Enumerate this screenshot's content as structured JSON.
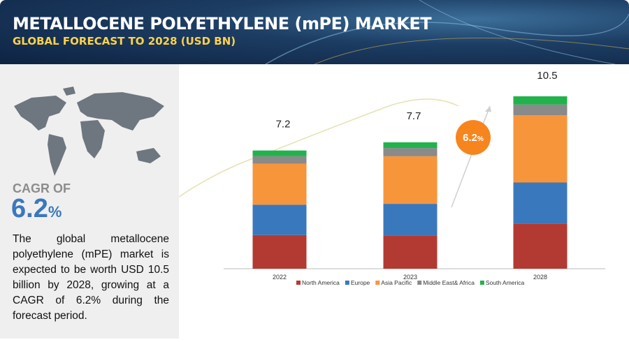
{
  "header": {
    "title": "METALLOCENE POLYETHYLENE (mPE) MARKET",
    "subtitle": "GLOBAL FORECAST TO 2028 (USD BN)"
  },
  "sidebar": {
    "cagr_label": "CAGR OF",
    "cagr": 6.2,
    "cagr_unit": "%",
    "description": "The global metallocene polyethylene (mPE) market is expected to be worth USD 10.5 billion by 2028, growing at a CAGR of 6.2% during the forecast period."
  },
  "chart_data": {
    "type": "stacked_bar",
    "categories": [
      "2022",
      "2023",
      "2028"
    ],
    "totals": [
      7.2,
      7.7,
      10.5
    ],
    "series": [
      {
        "name": "North America",
        "color": "#b33a32",
        "values": [
          2.05,
          2.0,
          2.75
        ]
      },
      {
        "name": "Europe",
        "color": "#3a78bd",
        "values": [
          1.85,
          1.95,
          2.5
        ]
      },
      {
        "name": "Asia Pacific",
        "color": "#f7953a",
        "values": [
          2.5,
          2.9,
          4.1
        ]
      },
      {
        "name": "Middle East& Africa",
        "color": "#8a8a8a",
        "values": [
          0.45,
          0.5,
          0.65
        ]
      },
      {
        "name": "South America",
        "color": "#22b24c",
        "values": [
          0.35,
          0.35,
          0.5
        ]
      }
    ],
    "badge": 6.2,
    "badge_unit": "%",
    "legend": "bottom"
  }
}
